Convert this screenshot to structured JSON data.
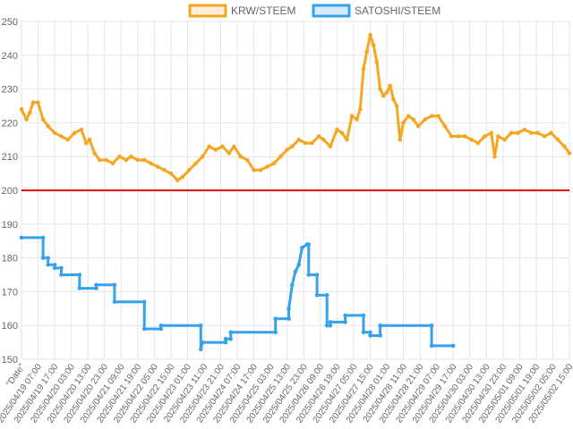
{
  "chart_data": {
    "type": "line",
    "title": "",
    "xlabel": "",
    "ylabel": "",
    "ylim": [
      150,
      250
    ],
    "yticks": [
      150,
      160,
      170,
      180,
      190,
      200,
      210,
      220,
      230,
      240,
      250
    ],
    "grid": true,
    "legend_position": "top-center",
    "reference_line": {
      "value": 200,
      "color": "#dd0000"
    },
    "x_ticks": [
      "\"Date\"",
      "2025/04/19 07:00",
      "2025/04/19 17:00",
      "2025/04/20 03:00",
      "2025/04/20 13:00",
      "2025/04/20 23:00",
      "2025/04/21 09:00",
      "2025/04/21 19:00",
      "2025/04/22 05:00",
      "2025/04/22 15:00",
      "2025/04/23 01:00",
      "2025/04/23 11:00",
      "2025/04/23 21:00",
      "2025/04/24 07:00",
      "2025/04/24 17:00",
      "2025/04/25 03:00",
      "2025/04/25 13:00",
      "2025/04/25 23:00",
      "2025/04/26 09:00",
      "2025/04/26 19:00",
      "2025/04/27 05:00",
      "2025/04/27 15:00",
      "2025/04/28 01:00",
      "2025/04/28 11:00",
      "2025/04/28 21:00",
      "2025/04/29 07:00",
      "2025/04/29 17:00",
      "2025/04/30 03:00",
      "2025/04/30 13:00",
      "2025/04/30 23:00",
      "2025/05/01 09:00",
      "2025/05/01 19:00",
      "2025/05/02 05:00",
      "2025/05/02 15:00"
    ],
    "series": [
      {
        "name": "KRW/STEEM",
        "color": "#f5a623",
        "fill": "rgba(245,166,35,0.18)",
        "points": [
          [
            0,
            224
          ],
          [
            0.3,
            221
          ],
          [
            0.5,
            223
          ],
          [
            0.7,
            226
          ],
          [
            1.0,
            226
          ],
          [
            1.3,
            221
          ],
          [
            1.6,
            219
          ],
          [
            2.0,
            217
          ],
          [
            2.4,
            216
          ],
          [
            2.8,
            215
          ],
          [
            3.2,
            217
          ],
          [
            3.6,
            218
          ],
          [
            3.9,
            214
          ],
          [
            4.1,
            215
          ],
          [
            4.4,
            211
          ],
          [
            4.7,
            209
          ],
          [
            5.1,
            209
          ],
          [
            5.5,
            208
          ],
          [
            5.9,
            210
          ],
          [
            6.3,
            209
          ],
          [
            6.6,
            210
          ],
          [
            7.0,
            209
          ],
          [
            7.4,
            209
          ],
          [
            7.8,
            208
          ],
          [
            8.2,
            207
          ],
          [
            8.6,
            206
          ],
          [
            9.0,
            205
          ],
          [
            9.4,
            203
          ],
          [
            9.7,
            204
          ],
          [
            10.1,
            206
          ],
          [
            10.5,
            208
          ],
          [
            10.9,
            210
          ],
          [
            11.3,
            213
          ],
          [
            11.7,
            212
          ],
          [
            12.1,
            213
          ],
          [
            12.5,
            211
          ],
          [
            12.8,
            213
          ],
          [
            13.2,
            210
          ],
          [
            13.6,
            209
          ],
          [
            14.0,
            206
          ],
          [
            14.4,
            206
          ],
          [
            14.8,
            207
          ],
          [
            15.2,
            208
          ],
          [
            15.6,
            210
          ],
          [
            16.0,
            212
          ],
          [
            16.3,
            213
          ],
          [
            16.7,
            215
          ],
          [
            17.1,
            214
          ],
          [
            17.5,
            214
          ],
          [
            17.9,
            216
          ],
          [
            18.2,
            215
          ],
          [
            18.6,
            213
          ],
          [
            19.0,
            218
          ],
          [
            19.3,
            217
          ],
          [
            19.6,
            215
          ],
          [
            19.9,
            222
          ],
          [
            20.2,
            221
          ],
          [
            20.4,
            224
          ],
          [
            20.6,
            236
          ],
          [
            20.8,
            241
          ],
          [
            21.0,
            246
          ],
          [
            21.2,
            243
          ],
          [
            21.4,
            238
          ],
          [
            21.6,
            230
          ],
          [
            21.8,
            228
          ],
          [
            22.0,
            229
          ],
          [
            22.2,
            231
          ],
          [
            22.4,
            227
          ],
          [
            22.6,
            225
          ],
          [
            22.8,
            215
          ],
          [
            23.0,
            220
          ],
          [
            23.3,
            222
          ],
          [
            23.6,
            221
          ],
          [
            23.9,
            219
          ],
          [
            24.3,
            221
          ],
          [
            24.7,
            222
          ],
          [
            25.1,
            222
          ],
          [
            25.5,
            219
          ],
          [
            25.9,
            216
          ],
          [
            26.3,
            216
          ],
          [
            26.7,
            216
          ],
          [
            27.1,
            215
          ],
          [
            27.5,
            214
          ],
          [
            27.9,
            216
          ],
          [
            28.3,
            217
          ],
          [
            28.5,
            210
          ],
          [
            28.7,
            216
          ],
          [
            29.1,
            215
          ],
          [
            29.5,
            217
          ],
          [
            29.9,
            217
          ],
          [
            30.3,
            218
          ],
          [
            30.7,
            217
          ],
          [
            31.1,
            217
          ],
          [
            31.5,
            216
          ],
          [
            31.9,
            217
          ],
          [
            32.3,
            215
          ],
          [
            32.7,
            213
          ],
          [
            33.0,
            211
          ]
        ]
      },
      {
        "name": "SATOSHI/STEEM",
        "color": "#36a2eb",
        "fill": "rgba(54,162,235,0.20)",
        "points": [
          [
            0,
            186
          ],
          [
            1.3,
            186
          ],
          [
            1.3,
            180
          ],
          [
            1.6,
            180
          ],
          [
            1.6,
            178
          ],
          [
            2.0,
            178
          ],
          [
            2.0,
            177
          ],
          [
            2.4,
            177
          ],
          [
            2.4,
            175
          ],
          [
            3.5,
            175
          ],
          [
            3.5,
            171
          ],
          [
            4.5,
            171
          ],
          [
            4.5,
            172
          ],
          [
            5.6,
            172
          ],
          [
            5.6,
            167
          ],
          [
            7.4,
            167
          ],
          [
            7.4,
            159
          ],
          [
            8.4,
            159
          ],
          [
            8.4,
            160
          ],
          [
            10.8,
            160
          ],
          [
            10.8,
            153
          ],
          [
            10.9,
            155
          ],
          [
            12.3,
            155
          ],
          [
            12.3,
            156
          ],
          [
            12.6,
            156
          ],
          [
            12.6,
            158
          ],
          [
            15.3,
            158
          ],
          [
            15.3,
            162
          ],
          [
            16.1,
            162
          ],
          [
            16.1,
            165
          ],
          [
            16.3,
            172
          ],
          [
            16.5,
            176
          ],
          [
            16.7,
            178
          ],
          [
            16.9,
            183
          ],
          [
            17.2,
            184
          ],
          [
            17.3,
            184
          ],
          [
            17.3,
            175
          ],
          [
            17.8,
            175
          ],
          [
            17.8,
            169
          ],
          [
            18.4,
            169
          ],
          [
            18.4,
            160
          ],
          [
            18.6,
            160
          ],
          [
            18.6,
            161
          ],
          [
            19.5,
            161
          ],
          [
            19.5,
            163
          ],
          [
            20.6,
            163
          ],
          [
            20.6,
            158
          ],
          [
            21.0,
            158
          ],
          [
            21.0,
            157
          ],
          [
            21.6,
            157
          ],
          [
            21.6,
            160
          ],
          [
            24.7,
            160
          ],
          [
            24.7,
            154
          ],
          [
            26.0,
            154
          ]
        ]
      }
    ]
  }
}
